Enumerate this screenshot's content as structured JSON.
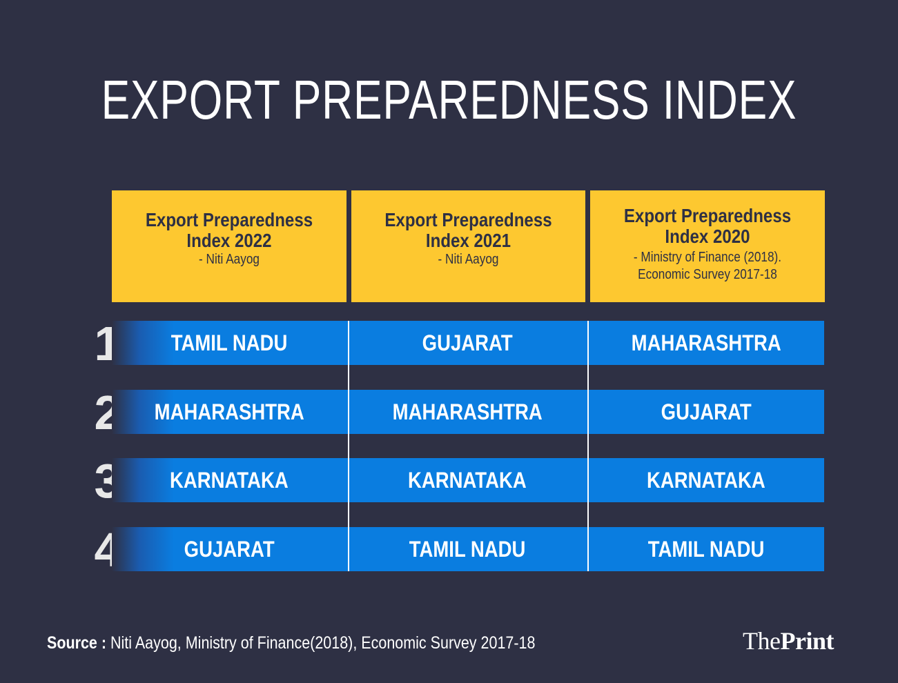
{
  "title": "EXPORT PREPAREDNESS INDEX",
  "headers": [
    {
      "title_line1": "Export Preparedness",
      "title_line2": "Index 2022",
      "source_line1": "- Niti Aayog",
      "source_line2": ""
    },
    {
      "title_line1": "Export Preparedness",
      "title_line2": "Index 2021",
      "source_line1": "- Niti Aayog",
      "source_line2": ""
    },
    {
      "title_line1": "Export Preparedness",
      "title_line2": "Index 2020",
      "source_line1": "- Ministry of Finance (2018).",
      "source_line2": "Economic Survey 2017-18"
    }
  ],
  "rows": [
    {
      "rank": "1",
      "cells": [
        "TAMIL NADU",
        "GUJARAT",
        "MAHARASHTRA"
      ]
    },
    {
      "rank": "2",
      "cells": [
        "MAHARASHTRA",
        "MAHARASHTRA",
        "GUJARAT"
      ]
    },
    {
      "rank": "3",
      "cells": [
        "KARNATAKA",
        "KARNATAKA",
        "KARNATAKA"
      ]
    },
    {
      "rank": "4",
      "cells": [
        "GUJARAT",
        "TAMIL NADU",
        "TAMIL NADU"
      ]
    }
  ],
  "source": {
    "label": "Source :",
    "text": "Niti Aayog, Ministry of Finance(2018), Economic Survey 2017-18"
  },
  "logo": {
    "part1": "The",
    "part2": "Print"
  },
  "colors": {
    "background": "#2e3044",
    "header": "#fdc830",
    "row": "#0a7de0",
    "text": "#ffffff"
  }
}
